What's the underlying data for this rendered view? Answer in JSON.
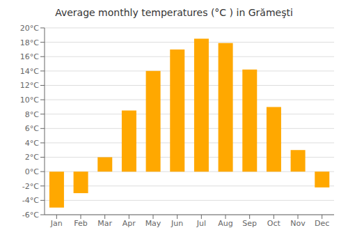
{
  "chart_data": {
    "type": "bar",
    "title": "Average monthly temperatures (°C ) in Grămeşti",
    "categories": [
      "Jan",
      "Feb",
      "Mar",
      "Apr",
      "May",
      "Jun",
      "Jul",
      "Aug",
      "Sep",
      "Oct",
      "Nov",
      "Dec"
    ],
    "values": [
      -5.0,
      -3.0,
      2.0,
      8.5,
      14.0,
      17.0,
      18.5,
      17.9,
      14.2,
      9.0,
      3.0,
      -2.2
    ],
    "color": "#FFA800",
    "ylim": [
      -6,
      20
    ],
    "yticks": [
      {
        "value": -6,
        "label": "-6°C"
      },
      {
        "value": -4,
        "label": "-4°C"
      },
      {
        "value": -2,
        "label": "-2°C"
      },
      {
        "value": 0,
        "label": "0°C"
      },
      {
        "value": 2,
        "label": "2°C"
      },
      {
        "value": 4,
        "label": "4°C"
      },
      {
        "value": 6,
        "label": "6°C"
      },
      {
        "value": 8,
        "label": "8°C"
      },
      {
        "value": 10,
        "label": "10°C"
      },
      {
        "value": 12,
        "label": "12°C"
      },
      {
        "value": 14,
        "label": "14°C"
      },
      {
        "value": 16,
        "label": "16°C"
      },
      {
        "value": 18,
        "label": "18°C"
      },
      {
        "value": 20,
        "label": "20°C"
      }
    ],
    "grid": true
  }
}
